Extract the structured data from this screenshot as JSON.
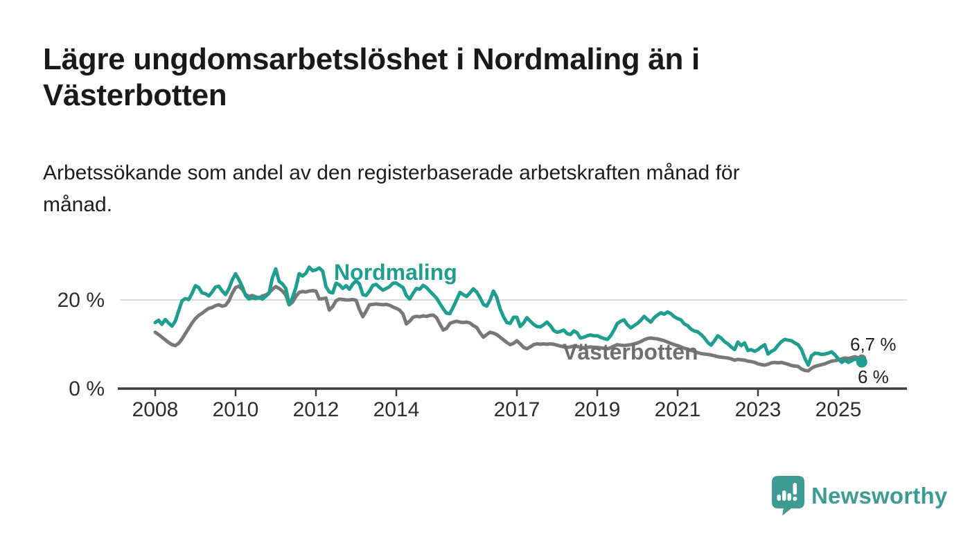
{
  "page": {
    "title": "Lägre ungdomsarbetslöshet i Nordmaling än i\nVästerbotten",
    "subtitle": "Arbetssökande som andel av den registerbaserade arbetskraften månad för\nmånad.",
    "background_color": "#ffffff"
  },
  "branding": {
    "logo_text": "Newsworthy",
    "logo_color": "#3f9b91",
    "logo_icon": "speech-bubble-bar-chart-exclamation-icon"
  },
  "chart_data": {
    "type": "line",
    "title": "Lägre ungdomsarbetslöshet i Nordmaling än i Västerbotten",
    "subtitle": "Arbetssökande som andel av den registerbaserade arbetskraften månad för månad.",
    "unit": "%",
    "x_start_year": 2008,
    "x_step_months": 1,
    "x_end_label_approx": "aug 2025",
    "x_ticks": [
      2008,
      2010,
      2012,
      2014,
      2017,
      2019,
      2021,
      2023,
      2025
    ],
    "y_ticks": [
      {
        "value": 0,
        "label": "0 %"
      },
      {
        "value": 20,
        "label": "20 %"
      }
    ],
    "ylim": [
      0,
      30
    ],
    "grid": "horizontal-only",
    "legend_position": "inline-labels",
    "colors": {
      "nordmaling": "#1f9e90",
      "vasterbotten": "#787878"
    },
    "series": [
      {
        "name": "Västerbotten",
        "color": "#787878",
        "label_color": "#6e6e6e",
        "end_value": 6.7,
        "end_label": "6,7 %",
        "values": [
          12.7,
          12.2,
          11.6,
          11.0,
          10.4,
          9.9,
          9.7,
          10.2,
          11.2,
          12.4,
          13.6,
          14.8,
          15.8,
          16.5,
          17.0,
          17.6,
          18.1,
          18.3,
          18.7,
          18.9,
          18.6,
          18.8,
          19.8,
          21.5,
          22.8,
          23.1,
          22.4,
          21.2,
          20.8,
          21.0,
          20.7,
          20.4,
          20.9,
          21.1,
          21.6,
          22.4,
          23.0,
          22.6,
          22.0,
          21.1,
          18.9,
          19.5,
          20.8,
          21.7,
          21.9,
          21.8,
          22.0,
          22.1,
          22.0,
          20.2,
          20.3,
          20.4,
          17.7,
          18.5,
          19.8,
          20.2,
          20.1,
          20.0,
          20.0,
          20.1,
          19.9,
          17.8,
          16.2,
          17.5,
          18.9,
          19.0,
          19.1,
          19.0,
          18.9,
          19.0,
          18.8,
          18.4,
          18.1,
          17.7,
          16.8,
          14.6,
          15.2,
          16.1,
          16.3,
          16.2,
          16.4,
          16.3,
          16.5,
          16.6,
          16.0,
          14.6,
          13.2,
          13.6,
          14.7,
          15.0,
          15.2,
          15.0,
          14.9,
          15.0,
          14.8,
          14.2,
          13.8,
          12.6,
          11.6,
          12.2,
          12.7,
          12.5,
          12.2,
          11.6,
          11.0,
          10.4,
          9.9,
          10.2,
          10.8,
          10.1,
          9.3,
          9.0,
          9.4,
          9.9,
          10.1,
          10.0,
          10.1,
          10.0,
          10.1,
          10.0,
          9.8,
          9.6,
          9.4,
          9.3,
          9.4,
          9.6,
          9.5,
          9.3,
          9.2,
          9.3,
          9.4,
          9.3,
          9.3,
          9.2,
          9.1,
          9.0,
          9.2,
          9.6,
          9.9,
          9.8,
          9.7,
          9.8,
          9.9,
          10.1,
          10.3,
          10.6,
          11.0,
          11.3,
          11.4,
          11.3,
          11.2,
          11.0,
          10.8,
          10.5,
          10.2,
          9.9,
          9.7,
          9.4,
          9.1,
          8.9,
          8.6,
          8.4,
          8.1,
          7.9,
          7.8,
          7.7,
          7.6,
          7.4,
          7.2,
          7.1,
          7.0,
          6.9,
          6.7,
          6.4,
          6.6,
          6.5,
          6.4,
          6.2,
          6.1,
          5.9,
          5.6,
          5.4,
          5.3,
          5.5,
          5.8,
          5.9,
          5.8,
          5.9,
          5.7,
          5.5,
          5.2,
          5.1,
          5.0,
          4.4,
          4.1,
          4.0,
          4.6,
          5.0,
          5.2,
          5.4,
          5.6,
          5.9,
          6.2,
          6.3,
          6.5,
          6.7,
          6.9,
          6.8,
          7.0,
          7.2,
          6.9,
          6.7
        ]
      },
      {
        "name": "Nordmaling",
        "color": "#1f9e90",
        "label_color": "#1f9e90",
        "end_value": 6.0,
        "end_label": "6 %",
        "values": [
          14.9,
          15.4,
          14.5,
          15.6,
          14.8,
          14.1,
          15.2,
          17.5,
          19.8,
          20.3,
          20.1,
          21.5,
          23.2,
          22.8,
          21.6,
          21.4,
          20.9,
          21.8,
          22.9,
          23.1,
          22.0,
          21.2,
          22.5,
          24.5,
          25.9,
          24.6,
          23.0,
          21.0,
          20.2,
          20.5,
          20.3,
          20.6,
          20.2,
          20.8,
          21.5,
          25.0,
          27.0,
          24.2,
          23.6,
          22.6,
          19.0,
          20.5,
          22.8,
          25.9,
          25.4,
          26.0,
          27.4,
          26.6,
          26.8,
          27.2,
          26.5,
          23.0,
          21.8,
          21.6,
          23.8,
          23.4,
          22.6,
          23.2,
          22.4,
          23.6,
          24.3,
          23.6,
          21.2,
          21.0,
          22.0,
          23.3,
          23.5,
          22.8,
          22.2,
          22.6,
          23.0,
          23.8,
          23.8,
          23.3,
          22.8,
          21.0,
          20.2,
          21.5,
          22.6,
          22.4,
          23.3,
          22.8,
          22.0,
          21.2,
          20.4,
          19.2,
          18.0,
          17.0,
          16.9,
          18.4,
          20.0,
          21.7,
          21.2,
          20.8,
          21.6,
          22.5,
          21.8,
          20.5,
          19.0,
          18.6,
          20.0,
          22.0,
          20.6,
          18.0,
          16.2,
          14.9,
          14.7,
          16.1,
          16.1,
          14.0,
          14.8,
          16.0,
          15.2,
          14.5,
          14.0,
          13.9,
          14.4,
          15.0,
          14.2,
          13.1,
          12.7,
          12.9,
          13.2,
          12.4,
          12.2,
          13.0,
          12.6,
          11.4,
          11.6,
          11.9,
          12.1,
          11.9,
          11.9,
          11.6,
          11.3,
          11.1,
          11.9,
          13.2,
          14.7,
          15.2,
          15.5,
          14.4,
          13.7,
          14.2,
          14.7,
          15.4,
          16.3,
          15.6,
          15.0,
          16.0,
          16.6,
          17.1,
          16.8,
          17.3,
          16.9,
          16.2,
          15.8,
          15.5,
          14.6,
          14.2,
          13.4,
          13.0,
          12.8,
          12.2,
          11.4,
          10.4,
          9.8,
          10.8,
          11.9,
          11.4,
          10.6,
          10.1,
          9.4,
          8.8,
          10.5,
          9.7,
          10.3,
          8.6,
          8.8,
          8.4,
          8.8,
          9.4,
          9.9,
          7.8,
          8.4,
          8.8,
          9.8,
          10.6,
          11.1,
          10.9,
          10.8,
          10.3,
          9.9,
          8.8,
          6.8,
          5.3,
          7.4,
          8.0,
          7.9,
          7.7,
          7.8,
          8.0,
          8.3,
          7.6,
          6.7,
          5.9,
          6.4,
          5.9,
          6.3,
          6.7,
          6.3,
          6.0
        ]
      }
    ]
  }
}
